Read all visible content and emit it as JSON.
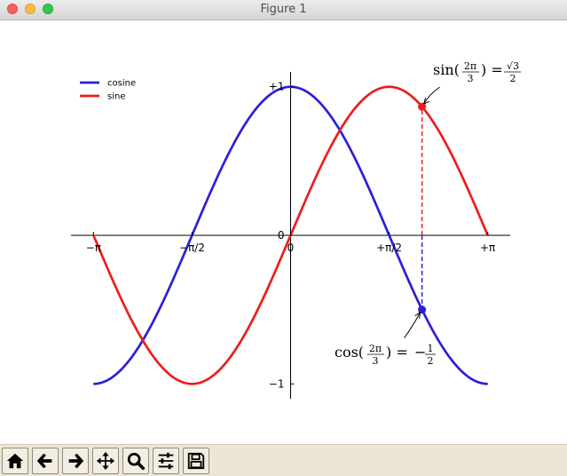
{
  "window": {
    "title": "Figure 1"
  },
  "toolbar": {
    "buttons": [
      {
        "name": "home-button",
        "icon": "home-icon"
      },
      {
        "name": "back-button",
        "icon": "arrow-left-icon"
      },
      {
        "name": "forward-button",
        "icon": "arrow-right-icon"
      },
      {
        "name": "pan-button",
        "icon": "move-icon"
      },
      {
        "name": "zoom-button",
        "icon": "zoom-icon"
      },
      {
        "name": "subplots-button",
        "icon": "sliders-icon"
      },
      {
        "name": "save-button",
        "icon": "save-icon"
      }
    ]
  },
  "chart_data": {
    "type": "line",
    "title": "",
    "xlabel": "",
    "ylabel": "",
    "xlim": [
      -3.5,
      3.5
    ],
    "ylim": [
      -1.1,
      1.1
    ],
    "xticks": [
      {
        "value": -3.14159,
        "label": "−π"
      },
      {
        "value": -1.5708,
        "label": "−π/2"
      },
      {
        "value": 0,
        "label": "0"
      },
      {
        "value": 1.5708,
        "label": "+π/2"
      },
      {
        "value": 3.14159,
        "label": "+π"
      }
    ],
    "yticks": [
      {
        "value": -1,
        "label": "−1"
      },
      {
        "value": 0,
        "label": "0"
      },
      {
        "value": 1,
        "label": "+1"
      }
    ],
    "grid": false,
    "legend_position": "upper-left",
    "series": [
      {
        "name": "cosine",
        "function": "cos",
        "color": "#2a1fd9",
        "x_range": [
          -3.14159,
          3.14159
        ]
      },
      {
        "name": "sine",
        "function": "sin",
        "color": "#ee1c1c",
        "x_range": [
          -3.14159,
          3.14159
        ]
      }
    ],
    "annotations": [
      {
        "x": 2.0944,
        "y": 0.866,
        "series": "sine",
        "color": "#ee1c1c",
        "text": {
          "prefix": "sin(",
          "num": "2π",
          "den": "3",
          "middle": ") = ",
          "rnum": "√3",
          "rden": "2",
          "sign": ""
        }
      },
      {
        "x": 2.0944,
        "y": -0.5,
        "series": "cosine",
        "color": "#2a1fd9",
        "text": {
          "prefix": "cos(",
          "num": "2π",
          "den": "3",
          "middle": ") = ",
          "rnum": "1",
          "rden": "2",
          "sign": "−"
        }
      }
    ]
  }
}
